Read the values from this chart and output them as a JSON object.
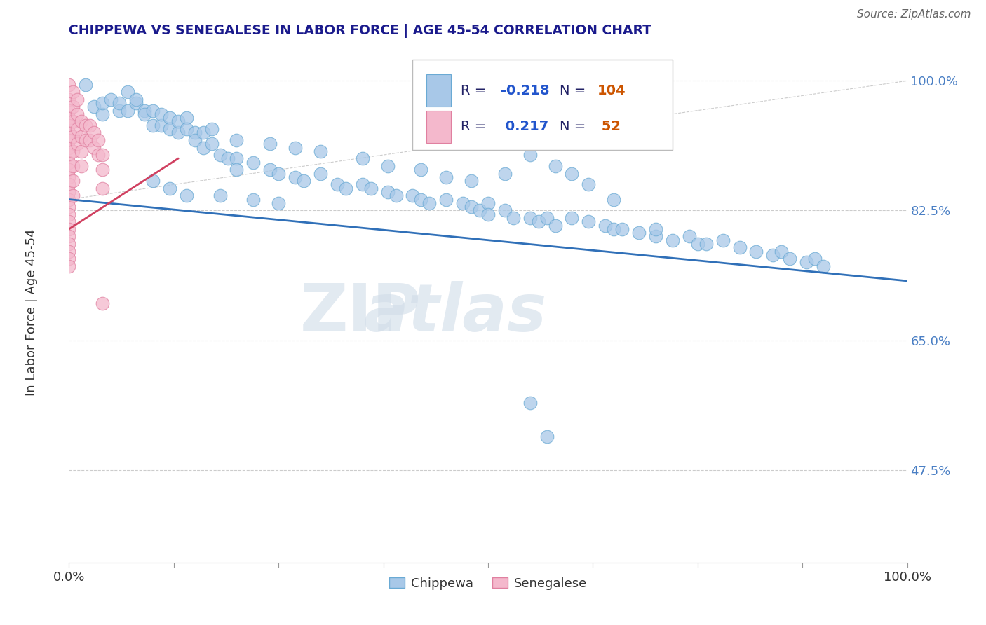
{
  "title": "CHIPPEWA VS SENEGALESE IN LABOR FORCE | AGE 45-54 CORRELATION CHART",
  "source_text": "Source: ZipAtlas.com",
  "ylabel": "In Labor Force | Age 45-54",
  "watermark_zip": "ZIP",
  "watermark_atlas": "atlas",
  "xlim": [
    0.0,
    1.0
  ],
  "ylim": [
    0.35,
    1.05
  ],
  "xtick_positions": [
    0.0,
    0.125,
    0.25,
    0.375,
    0.5,
    0.625,
    0.75,
    0.875,
    1.0
  ],
  "xtick_labels_show": {
    "0.0": "0.0%",
    "1.0": "100.0%"
  },
  "ytick_values": [
    0.475,
    0.65,
    0.825,
    1.0
  ],
  "ytick_labels": [
    "47.5%",
    "65.0%",
    "82.5%",
    "100.0%"
  ],
  "chippewa_color": "#a8c8e8",
  "chippewa_edge_color": "#6aaad4",
  "senegalese_color": "#f4b8cc",
  "senegalese_edge_color": "#e080a0",
  "chippewa_line_color": "#3070b8",
  "senegalese_line_color": "#d04060",
  "senegalese_line_dash": [
    6,
    4
  ],
  "grid_color": "#cccccc",
  "background_color": "#ffffff",
  "legend_box_color": "#ffffff",
  "legend_border_color": "#aaaaaa",
  "chippewa_R": -0.218,
  "chippewa_N": 104,
  "senegalese_R": 0.217,
  "senegalese_N": 52,
  "r_color": "#2255cc",
  "n_color": "#cc5500",
  "chippewa_scatter": [
    [
      0.02,
      0.995
    ],
    [
      0.03,
      0.965
    ],
    [
      0.04,
      0.955
    ],
    [
      0.04,
      0.97
    ],
    [
      0.05,
      0.975
    ],
    [
      0.06,
      0.96
    ],
    [
      0.06,
      0.97
    ],
    [
      0.07,
      0.96
    ],
    [
      0.07,
      0.985
    ],
    [
      0.08,
      0.97
    ],
    [
      0.08,
      0.975
    ],
    [
      0.09,
      0.96
    ],
    [
      0.09,
      0.955
    ],
    [
      0.1,
      0.94
    ],
    [
      0.1,
      0.96
    ],
    [
      0.11,
      0.94
    ],
    [
      0.11,
      0.955
    ],
    [
      0.12,
      0.95
    ],
    [
      0.12,
      0.935
    ],
    [
      0.13,
      0.93
    ],
    [
      0.13,
      0.945
    ],
    [
      0.14,
      0.95
    ],
    [
      0.14,
      0.935
    ],
    [
      0.15,
      0.93
    ],
    [
      0.15,
      0.92
    ],
    [
      0.16,
      0.91
    ],
    [
      0.16,
      0.93
    ],
    [
      0.17,
      0.915
    ],
    [
      0.18,
      0.9
    ],
    [
      0.19,
      0.895
    ],
    [
      0.2,
      0.895
    ],
    [
      0.2,
      0.88
    ],
    [
      0.22,
      0.89
    ],
    [
      0.24,
      0.88
    ],
    [
      0.25,
      0.875
    ],
    [
      0.27,
      0.87
    ],
    [
      0.28,
      0.865
    ],
    [
      0.3,
      0.875
    ],
    [
      0.32,
      0.86
    ],
    [
      0.33,
      0.855
    ],
    [
      0.35,
      0.86
    ],
    [
      0.36,
      0.855
    ],
    [
      0.38,
      0.85
    ],
    [
      0.39,
      0.845
    ],
    [
      0.41,
      0.845
    ],
    [
      0.42,
      0.84
    ],
    [
      0.43,
      0.835
    ],
    [
      0.45,
      0.84
    ],
    [
      0.47,
      0.835
    ],
    [
      0.48,
      0.83
    ],
    [
      0.49,
      0.825
    ],
    [
      0.5,
      0.835
    ],
    [
      0.5,
      0.82
    ],
    [
      0.52,
      0.825
    ],
    [
      0.53,
      0.815
    ],
    [
      0.55,
      0.815
    ],
    [
      0.56,
      0.81
    ],
    [
      0.57,
      0.815
    ],
    [
      0.58,
      0.805
    ],
    [
      0.6,
      0.815
    ],
    [
      0.62,
      0.81
    ],
    [
      0.64,
      0.805
    ],
    [
      0.65,
      0.8
    ],
    [
      0.66,
      0.8
    ],
    [
      0.68,
      0.795
    ],
    [
      0.7,
      0.79
    ],
    [
      0.7,
      0.8
    ],
    [
      0.72,
      0.785
    ],
    [
      0.74,
      0.79
    ],
    [
      0.75,
      0.78
    ],
    [
      0.76,
      0.78
    ],
    [
      0.78,
      0.785
    ],
    [
      0.8,
      0.775
    ],
    [
      0.82,
      0.77
    ],
    [
      0.84,
      0.765
    ],
    [
      0.85,
      0.77
    ],
    [
      0.86,
      0.76
    ],
    [
      0.88,
      0.755
    ],
    [
      0.89,
      0.76
    ],
    [
      0.9,
      0.75
    ],
    [
      0.14,
      0.845
    ],
    [
      0.18,
      0.845
    ],
    [
      0.22,
      0.84
    ],
    [
      0.25,
      0.835
    ],
    [
      0.1,
      0.865
    ],
    [
      0.12,
      0.855
    ],
    [
      0.55,
      0.9
    ],
    [
      0.58,
      0.885
    ],
    [
      0.6,
      0.875
    ],
    [
      0.62,
      0.86
    ],
    [
      0.45,
      0.87
    ],
    [
      0.48,
      0.865
    ],
    [
      0.52,
      0.875
    ],
    [
      0.35,
      0.895
    ],
    [
      0.38,
      0.885
    ],
    [
      0.42,
      0.88
    ],
    [
      0.65,
      0.84
    ],
    [
      0.3,
      0.905
    ],
    [
      0.27,
      0.91
    ],
    [
      0.24,
      0.915
    ],
    [
      0.2,
      0.92
    ],
    [
      0.17,
      0.935
    ],
    [
      0.55,
      0.565
    ],
    [
      0.57,
      0.52
    ]
  ],
  "senegalese_scatter": [
    [
      0.0,
      0.995
    ],
    [
      0.0,
      0.975
    ],
    [
      0.0,
      0.96
    ],
    [
      0.0,
      0.95
    ],
    [
      0.0,
      0.94
    ],
    [
      0.0,
      0.93
    ],
    [
      0.0,
      0.92
    ],
    [
      0.0,
      0.91
    ],
    [
      0.0,
      0.9
    ],
    [
      0.0,
      0.89
    ],
    [
      0.0,
      0.88
    ],
    [
      0.0,
      0.87
    ],
    [
      0.0,
      0.86
    ],
    [
      0.0,
      0.85
    ],
    [
      0.0,
      0.84
    ],
    [
      0.0,
      0.83
    ],
    [
      0.0,
      0.82
    ],
    [
      0.0,
      0.81
    ],
    [
      0.0,
      0.8
    ],
    [
      0.0,
      0.79
    ],
    [
      0.0,
      0.78
    ],
    [
      0.0,
      0.77
    ],
    [
      0.0,
      0.76
    ],
    [
      0.0,
      0.75
    ],
    [
      0.005,
      0.985
    ],
    [
      0.005,
      0.965
    ],
    [
      0.005,
      0.945
    ],
    [
      0.005,
      0.925
    ],
    [
      0.005,
      0.905
    ],
    [
      0.005,
      0.885
    ],
    [
      0.005,
      0.865
    ],
    [
      0.005,
      0.845
    ],
    [
      0.01,
      0.975
    ],
    [
      0.01,
      0.955
    ],
    [
      0.01,
      0.935
    ],
    [
      0.01,
      0.915
    ],
    [
      0.015,
      0.945
    ],
    [
      0.015,
      0.925
    ],
    [
      0.015,
      0.905
    ],
    [
      0.015,
      0.885
    ],
    [
      0.02,
      0.94
    ],
    [
      0.02,
      0.92
    ],
    [
      0.025,
      0.94
    ],
    [
      0.025,
      0.92
    ],
    [
      0.03,
      0.93
    ],
    [
      0.03,
      0.91
    ],
    [
      0.035,
      0.92
    ],
    [
      0.035,
      0.9
    ],
    [
      0.04,
      0.9
    ],
    [
      0.04,
      0.88
    ],
    [
      0.04,
      0.855
    ],
    [
      0.04,
      0.7
    ]
  ]
}
